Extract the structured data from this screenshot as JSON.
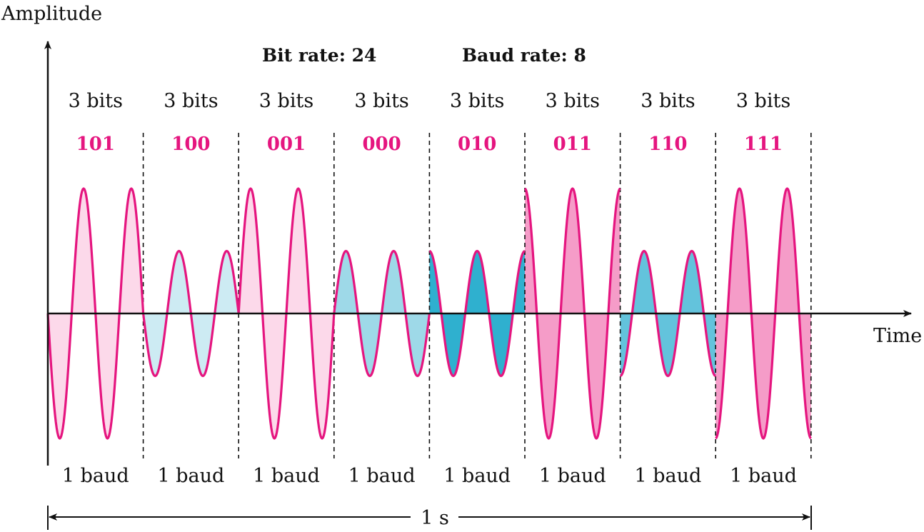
{
  "axes": {
    "y_label": "Amplitude",
    "x_label": "Time"
  },
  "rates": {
    "bit_rate": "Bit rate: 24",
    "baud_rate": "Baud rate: 8"
  },
  "duration_label": "1 s",
  "colors": {
    "signal_stroke": "#e5157f",
    "code_text": "#e5157f",
    "axis": "#111111"
  },
  "segments": [
    {
      "bits_label": "3 bits",
      "code": "101",
      "baud_label": "1 baud",
      "amplitude": 1.0,
      "phase_deg": 180,
      "fill": "#fcd9ea"
    },
    {
      "bits_label": "3 bits",
      "code": "100",
      "baud_label": "1 baud",
      "amplitude": 0.5,
      "phase_deg": 180,
      "fill": "#cdebf3"
    },
    {
      "bits_label": "3 bits",
      "code": "001",
      "baud_label": "1 baud",
      "amplitude": 1.0,
      "phase_deg": 0,
      "fill": "#fcd9ea"
    },
    {
      "bits_label": "3 bits",
      "code": "000",
      "baud_label": "1 baud",
      "amplitude": 0.5,
      "phase_deg": 0,
      "fill": "#9ed9e8"
    },
    {
      "bits_label": "3 bits",
      "code": "010",
      "baud_label": "1 baud",
      "amplitude": 0.5,
      "phase_deg": 90,
      "fill": "#2fb0cf"
    },
    {
      "bits_label": "3 bits",
      "code": "011",
      "baud_label": "1 baud",
      "amplitude": 1.0,
      "phase_deg": 90,
      "fill": "#f59cc8"
    },
    {
      "bits_label": "3 bits",
      "code": "110",
      "baud_label": "1 baud",
      "amplitude": 0.5,
      "phase_deg": 270,
      "fill": "#63c3dc"
    },
    {
      "bits_label": "3 bits",
      "code": "111",
      "baud_label": "1 baud",
      "amplitude": 1.0,
      "phase_deg": 270,
      "fill": "#f59cc8"
    }
  ]
}
